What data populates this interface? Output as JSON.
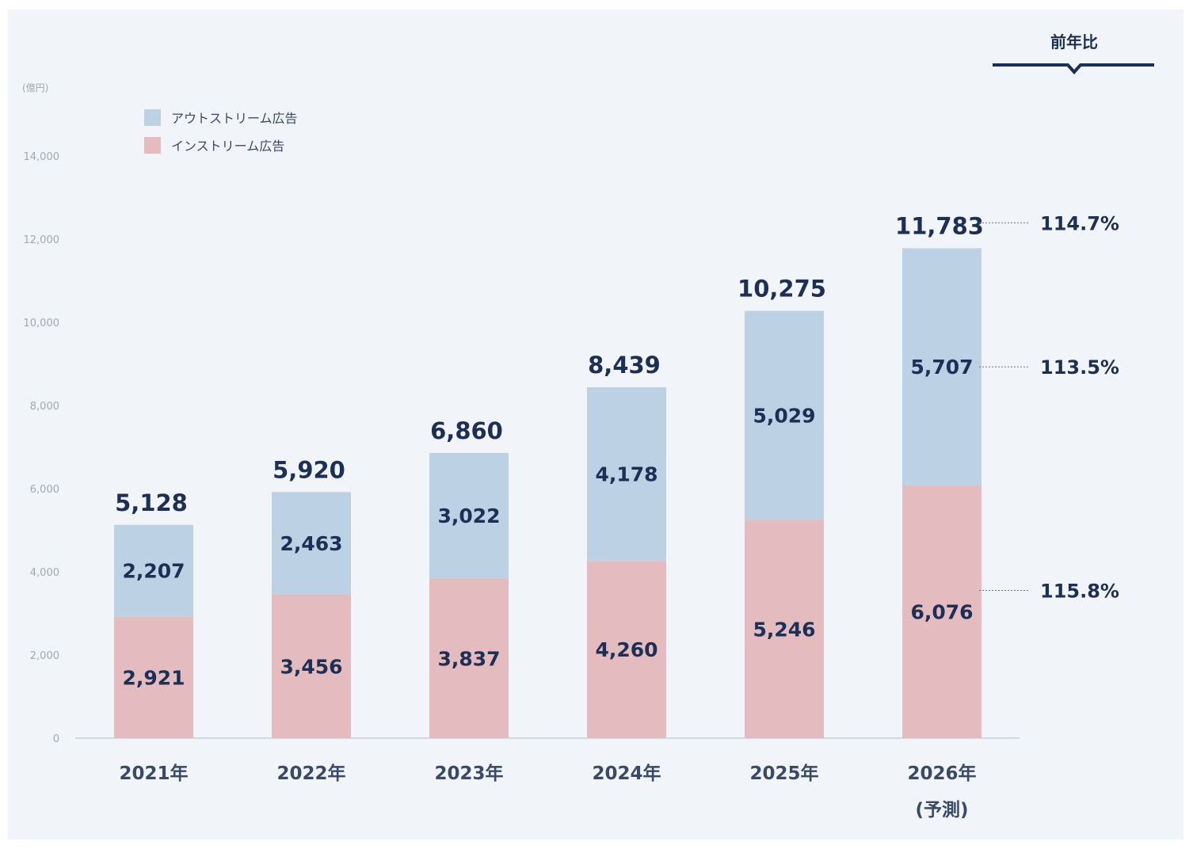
{
  "chart_data": {
    "type": "bar",
    "stacked": true,
    "unit": "(億円)",
    "categories": [
      "2021年",
      "2022年",
      "2023年",
      "2024年",
      "2025年",
      "2026年"
    ],
    "category_notes": [
      "",
      "",
      "",
      "",
      "",
      "(予測)"
    ],
    "series": [
      {
        "name": "インストリーム広告",
        "color": "#e4bcbf",
        "values": [
          2921,
          3456,
          3837,
          4260,
          5246,
          6076
        ]
      },
      {
        "name": "アウトストリーム広告",
        "color": "#bdd1e5",
        "values": [
          2207,
          2463,
          3022,
          4178,
          5029,
          5707
        ]
      }
    ],
    "totals": [
      5128,
      5920,
      6860,
      8439,
      10275,
      11783
    ],
    "ylim": [
      0,
      14000
    ],
    "yticks": [
      0,
      2000,
      4000,
      6000,
      8000,
      10000,
      12000,
      14000
    ],
    "yticklabels": [
      "0",
      "2,000",
      "4,000",
      "6,000",
      "8,000",
      "10,000",
      "12,000",
      "14,000"
    ],
    "grid": false,
    "legend": "top-left",
    "yoy": {
      "title": "前年比",
      "total": "114.7%",
      "outstream": "113.5%",
      "instream": "115.8%"
    }
  }
}
